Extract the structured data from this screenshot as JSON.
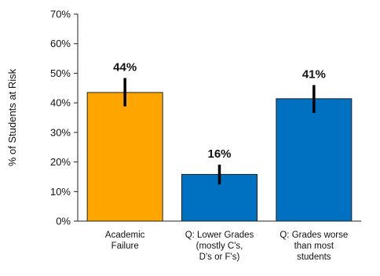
{
  "chart_data": {
    "type": "bar",
    "title": "",
    "xlabel": "",
    "ylabel": "% of Students at Risk",
    "ylim": [
      0,
      70
    ],
    "yticks": [
      "0%",
      "10%",
      "20%",
      "30%",
      "40%",
      "50%",
      "60%",
      "70%"
    ],
    "grid": false,
    "categories": [
      [
        "Academic",
        "Failure"
      ],
      [
        "Q: Lower Grades",
        "(mostly C's,",
        "D's or F's)"
      ],
      [
        "Q: Grades worse",
        "than most",
        "students"
      ]
    ],
    "values": [
      43.5,
      15.8,
      41.4
    ],
    "data_labels": [
      "44%",
      "16%",
      "41%"
    ],
    "error_low": [
      38.8,
      12.4,
      36.6
    ],
    "error_high": [
      48.4,
      19.1,
      46.0
    ],
    "colors": [
      "#FFA500",
      "#0070C0",
      "#0070C0"
    ]
  }
}
